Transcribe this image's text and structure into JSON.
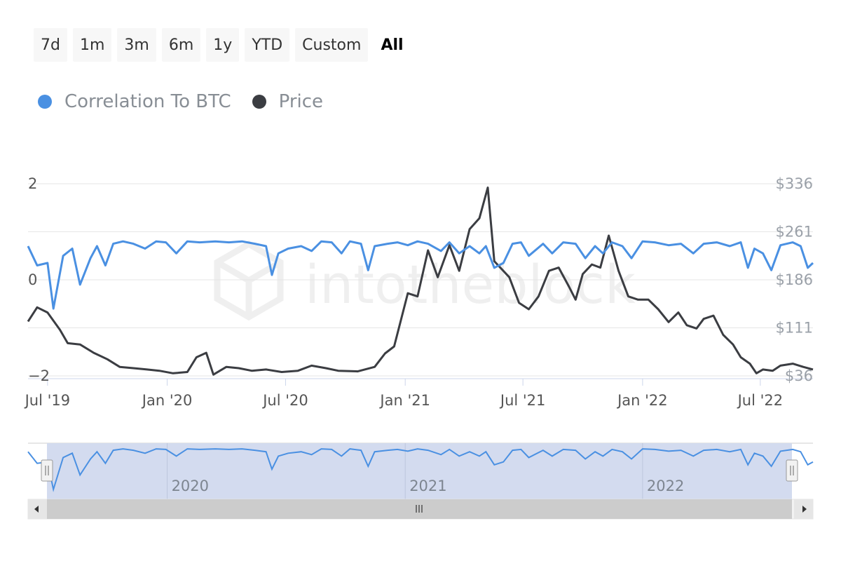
{
  "range_buttons": [
    {
      "label": "7d"
    },
    {
      "label": "1m"
    },
    {
      "label": "3m"
    },
    {
      "label": "6m"
    },
    {
      "label": "1y"
    },
    {
      "label": "YTD"
    },
    {
      "label": "Custom"
    },
    {
      "label": "All",
      "active": true
    }
  ],
  "watermark": "intotheblock",
  "colors": {
    "correlation": "#4a90e2",
    "price": "#3b3d42",
    "navigator_fill": "#d3dbef",
    "grid": "#e6e6e6"
  },
  "icons": {
    "scroll_left": "arrow-left-icon",
    "scroll_right": "arrow-right-icon",
    "scroll_thumb": "grip-icon",
    "handle": "handle-icon"
  },
  "navigator": {
    "year_labels": [
      "2020",
      "2021",
      "2022"
    ]
  },
  "chart_data": {
    "type": "line",
    "x_ticks": [
      "Jul '19",
      "Jan '20",
      "Jul '20",
      "Jan '21",
      "Jul '21",
      "Jan '22",
      "Jul '22"
    ],
    "x_tick_dates": [
      "2019-07-01",
      "2020-01-01",
      "2020-07-01",
      "2021-01-01",
      "2021-07-01",
      "2022-01-01",
      "2022-07-01"
    ],
    "x_range": [
      "2019-06-01",
      "2022-09-20"
    ],
    "y_left": {
      "ticks": [
        "2",
        "0",
        "−2"
      ],
      "range": [
        -2,
        2
      ]
    },
    "y_right": {
      "ticks": [
        "$336",
        "$261",
        "$186",
        "$111",
        "$36"
      ],
      "range": [
        36,
        336
      ]
    },
    "grid": true,
    "legend_position": "top-left",
    "series": [
      {
        "name": "Correlation To BTC",
        "axis": "left",
        "values": [
          [
            "2019-06-01",
            0.7
          ],
          [
            "2019-06-15",
            0.3
          ],
          [
            "2019-07-01",
            0.35
          ],
          [
            "2019-07-10",
            -0.6
          ],
          [
            "2019-07-25",
            0.5
          ],
          [
            "2019-08-08",
            0.65
          ],
          [
            "2019-08-20",
            -0.1
          ],
          [
            "2019-09-05",
            0.45
          ],
          [
            "2019-09-15",
            0.7
          ],
          [
            "2019-09-28",
            0.3
          ],
          [
            "2019-10-10",
            0.75
          ],
          [
            "2019-10-25",
            0.8
          ],
          [
            "2019-11-10",
            0.75
          ],
          [
            "2019-11-28",
            0.65
          ],
          [
            "2019-12-15",
            0.8
          ],
          [
            "2019-12-30",
            0.78
          ],
          [
            "2020-01-15",
            0.55
          ],
          [
            "2020-02-01",
            0.8
          ],
          [
            "2020-02-20",
            0.78
          ],
          [
            "2020-03-15",
            0.8
          ],
          [
            "2020-04-05",
            0.78
          ],
          [
            "2020-04-25",
            0.8
          ],
          [
            "2020-05-15",
            0.75
          ],
          [
            "2020-06-01",
            0.7
          ],
          [
            "2020-06-10",
            0.1
          ],
          [
            "2020-06-20",
            0.55
          ],
          [
            "2020-07-05",
            0.65
          ],
          [
            "2020-07-25",
            0.7
          ],
          [
            "2020-08-10",
            0.6
          ],
          [
            "2020-08-25",
            0.8
          ],
          [
            "2020-09-10",
            0.78
          ],
          [
            "2020-09-25",
            0.55
          ],
          [
            "2020-10-08",
            0.8
          ],
          [
            "2020-10-25",
            0.75
          ],
          [
            "2020-11-05",
            0.2
          ],
          [
            "2020-11-15",
            0.7
          ],
          [
            "2020-12-05",
            0.75
          ],
          [
            "2020-12-20",
            0.78
          ],
          [
            "2021-01-05",
            0.72
          ],
          [
            "2021-01-20",
            0.8
          ],
          [
            "2021-02-05",
            0.75
          ],
          [
            "2021-02-25",
            0.6
          ],
          [
            "2021-03-10",
            0.78
          ],
          [
            "2021-03-25",
            0.55
          ],
          [
            "2021-04-10",
            0.7
          ],
          [
            "2021-04-25",
            0.55
          ],
          [
            "2021-05-05",
            0.7
          ],
          [
            "2021-05-18",
            0.25
          ],
          [
            "2021-06-01",
            0.35
          ],
          [
            "2021-06-15",
            0.75
          ],
          [
            "2021-06-28",
            0.78
          ],
          [
            "2021-07-10",
            0.5
          ],
          [
            "2021-08-01",
            0.75
          ],
          [
            "2021-08-15",
            0.55
          ],
          [
            "2021-09-01",
            0.78
          ],
          [
            "2021-09-20",
            0.75
          ],
          [
            "2021-10-05",
            0.45
          ],
          [
            "2021-10-20",
            0.7
          ],
          [
            "2021-11-01",
            0.55
          ],
          [
            "2021-11-15",
            0.78
          ],
          [
            "2021-12-01",
            0.7
          ],
          [
            "2021-12-15",
            0.45
          ],
          [
            "2022-01-01",
            0.8
          ],
          [
            "2022-01-20",
            0.78
          ],
          [
            "2022-02-10",
            0.72
          ],
          [
            "2022-03-01",
            0.75
          ],
          [
            "2022-03-20",
            0.55
          ],
          [
            "2022-04-05",
            0.75
          ],
          [
            "2022-04-25",
            0.78
          ],
          [
            "2022-05-15",
            0.7
          ],
          [
            "2022-06-01",
            0.78
          ],
          [
            "2022-06-12",
            0.25
          ],
          [
            "2022-06-22",
            0.65
          ],
          [
            "2022-07-05",
            0.55
          ],
          [
            "2022-07-18",
            0.2
          ],
          [
            "2022-08-01",
            0.72
          ],
          [
            "2022-08-20",
            0.78
          ],
          [
            "2022-09-01",
            0.7
          ],
          [
            "2022-09-12",
            0.25
          ],
          [
            "2022-09-20",
            0.35
          ]
        ]
      },
      {
        "name": "Price",
        "axis": "right",
        "values": [
          [
            "2019-06-01",
            121
          ],
          [
            "2019-06-15",
            143
          ],
          [
            "2019-07-01",
            135
          ],
          [
            "2019-07-20",
            108
          ],
          [
            "2019-08-01",
            87
          ],
          [
            "2019-08-20",
            85
          ],
          [
            "2019-09-10",
            72
          ],
          [
            "2019-10-01",
            62
          ],
          [
            "2019-10-20",
            50
          ],
          [
            "2019-11-10",
            48
          ],
          [
            "2019-12-01",
            46
          ],
          [
            "2019-12-20",
            44
          ],
          [
            "2020-01-10",
            40
          ],
          [
            "2020-02-01",
            42
          ],
          [
            "2020-02-15",
            65
          ],
          [
            "2020-03-01",
            72
          ],
          [
            "2020-03-12",
            38
          ],
          [
            "2020-04-01",
            50
          ],
          [
            "2020-04-20",
            48
          ],
          [
            "2020-05-10",
            44
          ],
          [
            "2020-06-01",
            46
          ],
          [
            "2020-06-25",
            42
          ],
          [
            "2020-07-20",
            44
          ],
          [
            "2020-08-10",
            52
          ],
          [
            "2020-09-01",
            48
          ],
          [
            "2020-09-20",
            44
          ],
          [
            "2020-10-20",
            43
          ],
          [
            "2020-11-15",
            50
          ],
          [
            "2020-12-01",
            71
          ],
          [
            "2020-12-15",
            82
          ],
          [
            "2021-01-05",
            165
          ],
          [
            "2021-01-20",
            160
          ],
          [
            "2021-02-05",
            232
          ],
          [
            "2021-02-20",
            190
          ],
          [
            "2021-03-10",
            240
          ],
          [
            "2021-03-25",
            200
          ],
          [
            "2021-04-10",
            265
          ],
          [
            "2021-04-25",
            282
          ],
          [
            "2021-05-08",
            330
          ],
          [
            "2021-05-18",
            215
          ],
          [
            "2021-06-10",
            190
          ],
          [
            "2021-06-25",
            150
          ],
          [
            "2021-07-10",
            140
          ],
          [
            "2021-07-25",
            160
          ],
          [
            "2021-08-10",
            200
          ],
          [
            "2021-08-25",
            205
          ],
          [
            "2021-09-10",
            175
          ],
          [
            "2021-09-20",
            155
          ],
          [
            "2021-10-01",
            195
          ],
          [
            "2021-10-15",
            210
          ],
          [
            "2021-10-28",
            205
          ],
          [
            "2021-11-10",
            255
          ],
          [
            "2021-11-25",
            200
          ],
          [
            "2021-12-10",
            160
          ],
          [
            "2021-12-25",
            155
          ],
          [
            "2022-01-10",
            155
          ],
          [
            "2022-01-25",
            140
          ],
          [
            "2022-02-10",
            120
          ],
          [
            "2022-02-25",
            135
          ],
          [
            "2022-03-10",
            115
          ],
          [
            "2022-03-25",
            110
          ],
          [
            "2022-04-05",
            125
          ],
          [
            "2022-04-20",
            130
          ],
          [
            "2022-05-05",
            100
          ],
          [
            "2022-05-20",
            85
          ],
          [
            "2022-06-01",
            65
          ],
          [
            "2022-06-15",
            55
          ],
          [
            "2022-06-25",
            40
          ],
          [
            "2022-07-05",
            46
          ],
          [
            "2022-07-20",
            44
          ],
          [
            "2022-08-01",
            52
          ],
          [
            "2022-08-20",
            55
          ],
          [
            "2022-09-05",
            50
          ],
          [
            "2022-09-20",
            46
          ]
        ]
      }
    ]
  }
}
